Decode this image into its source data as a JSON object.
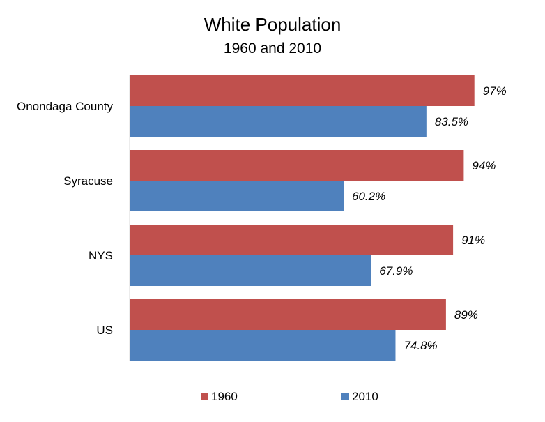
{
  "chart_data": {
    "type": "bar",
    "orientation": "horizontal",
    "title": "White Population",
    "subtitle": "1960 and 2010",
    "categories": [
      "Onondaga County",
      "Syracuse",
      "NYS",
      "US"
    ],
    "series": [
      {
        "name": "1960",
        "color": "#C0504D",
        "values": [
          97,
          94,
          91,
          89
        ],
        "labels": [
          "97%",
          "94%",
          "91%",
          "89%"
        ]
      },
      {
        "name": "2010",
        "color": "#4F81BD",
        "values": [
          83.5,
          60.2,
          67.9,
          74.8
        ],
        "labels": [
          "83.5%",
          "60.2%",
          "67.9%",
          "74.8%"
        ]
      }
    ],
    "xlim": [
      0,
      100
    ],
    "grid": false,
    "legend_position": "bottom"
  }
}
